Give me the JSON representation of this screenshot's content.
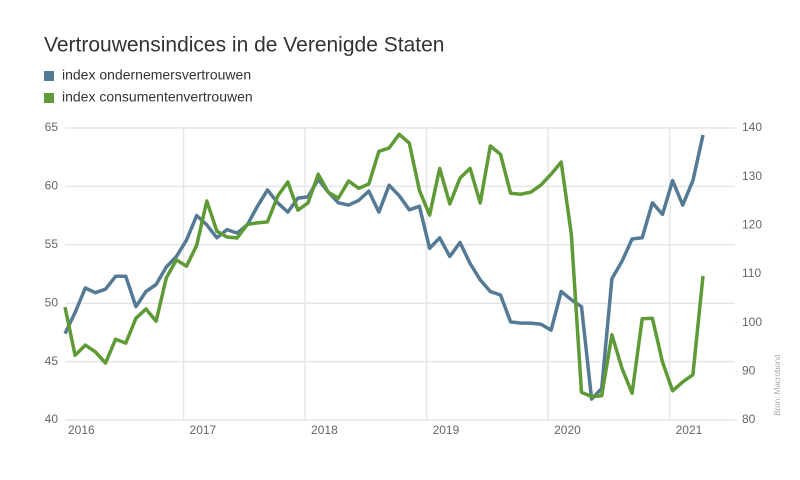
{
  "chart_data": {
    "type": "line",
    "title": "Vertrouwensindices in de Verenigde Staten",
    "source": "Bron: Macrobond",
    "categories": [
      "2016",
      null,
      null,
      null,
      null,
      null,
      null,
      null,
      null,
      null,
      null,
      null,
      "2017",
      null,
      null,
      null,
      null,
      null,
      null,
      null,
      null,
      null,
      null,
      null,
      "2018",
      null,
      null,
      null,
      null,
      null,
      null,
      null,
      null,
      null,
      null,
      null,
      "2019",
      null,
      null,
      null,
      null,
      null,
      null,
      null,
      null,
      null,
      null,
      null,
      "2020",
      null,
      null,
      null,
      null,
      null,
      null,
      null,
      null,
      null,
      null,
      null,
      "2021",
      null,
      null,
      null
    ],
    "series": [
      {
        "name": "index ondernemersvertrouwen",
        "color": "#557a95",
        "axis": "y",
        "values": [
          47.4,
          49.2,
          51.3,
          50.9,
          51.2,
          52.3,
          52.3,
          49.7,
          51.0,
          51.6,
          53.1,
          54.0,
          55.4,
          57.5,
          56.7,
          55.6,
          56.3,
          56.0,
          56.7,
          58.3,
          59.7,
          58.6,
          57.8,
          59.0,
          59.1,
          60.6,
          59.5,
          58.6,
          58.4,
          58.8,
          59.6,
          57.8,
          60.1,
          59.2,
          58.0,
          58.3,
          54.7,
          55.6,
          54.0,
          55.2,
          53.4,
          52.0,
          51.0,
          50.7,
          48.4,
          48.3,
          48.3,
          48.2,
          47.7,
          51.0,
          50.3,
          49.7,
          41.8,
          42.7,
          52.1,
          53.6,
          55.5,
          55.6,
          58.6,
          57.6,
          60.5,
          58.4,
          60.5,
          64.4
        ]
      },
      {
        "name": "index consumentenvertrouwen",
        "color": "#5e9a35",
        "axis": "y2",
        "values": [
          103.2,
          93.3,
          95.4,
          94.0,
          91.7,
          96.6,
          95.8,
          100.9,
          102.8,
          100.3,
          109.2,
          112.9,
          111.6,
          115.9,
          125.0,
          118.8,
          117.6,
          117.4,
          120.2,
          120.5,
          120.7,
          126.0,
          128.9,
          123.1,
          124.6,
          130.5,
          126.8,
          125.6,
          129.1,
          127.6,
          128.5,
          135.2,
          135.9,
          138.7,
          136.9,
          127.2,
          122.1,
          131.7,
          124.4,
          129.7,
          131.7,
          124.6,
          136.3,
          134.6,
          126.6,
          126.4,
          126.8,
          128.3,
          130.5,
          133.0,
          118.2,
          85.7,
          84.8,
          85.0,
          97.5,
          90.6,
          85.5,
          100.8,
          100.9,
          91.9,
          86.0,
          87.8,
          89.3,
          109.6
        ]
      }
    ],
    "ylim": [
      40,
      65
    ],
    "yticks": [
      40,
      45,
      50,
      55,
      60,
      65
    ],
    "y2lim": [
      80,
      140
    ],
    "y2ticks": [
      80,
      90,
      100,
      110,
      120,
      130,
      140
    ],
    "grid": true
  }
}
